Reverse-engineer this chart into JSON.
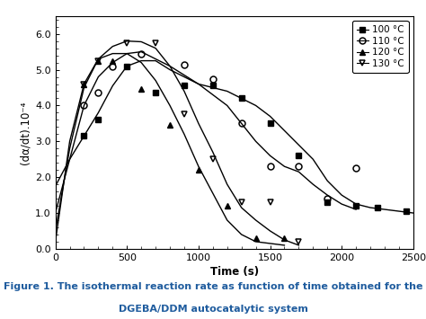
{
  "title_line1": "Figure 1. The isothermal reaction rate as function of time obtained for the",
  "title_line2": "DGEBA/DDM autocatalytic system",
  "xlabel": "Time (s)",
  "ylabel": "(dα/dt).10⁻⁴",
  "xlim": [
    0,
    2500
  ],
  "ylim": [
    0.0,
    6.5
  ],
  "yticks": [
    0.0,
    1.0,
    2.0,
    3.0,
    4.0,
    5.0,
    6.0
  ],
  "ytick_labels": [
    "0.0",
    "1.0",
    "2.0",
    "3.0",
    "4.0",
    "5.0",
    "6.0"
  ],
  "xticks": [
    0,
    500,
    1000,
    1500,
    2000,
    2500
  ],
  "series": {
    "100C": {
      "label": "100 °C",
      "marker": "s",
      "fillstyle": "full",
      "data_x": [
        200,
        300,
        500,
        700,
        900,
        1100,
        1300,
        1500,
        1700,
        1900,
        2100,
        2250,
        2450
      ],
      "data_y": [
        3.15,
        3.6,
        5.1,
        4.35,
        4.55,
        4.55,
        4.2,
        3.5,
        2.6,
        1.3,
        1.2,
        1.15,
        1.05
      ],
      "curve_x": [
        0,
        100,
        200,
        300,
        400,
        500,
        600,
        700,
        800,
        900,
        1000,
        1100,
        1200,
        1300,
        1400,
        1500,
        1600,
        1700,
        1800,
        1900,
        2000,
        2100,
        2200,
        2300,
        2400,
        2500
      ],
      "curve_y": [
        1.75,
        2.5,
        3.15,
        3.8,
        4.55,
        5.1,
        5.25,
        5.25,
        5.0,
        4.8,
        4.6,
        4.5,
        4.4,
        4.2,
        4.0,
        3.7,
        3.3,
        2.9,
        2.5,
        1.9,
        1.5,
        1.25,
        1.15,
        1.1,
        1.05,
        1.0
      ]
    },
    "110C": {
      "label": "110 °C",
      "marker": "o",
      "fillstyle": "none",
      "data_x": [
        200,
        300,
        400,
        600,
        900,
        1100,
        1300,
        1500,
        1700,
        1900,
        2100
      ],
      "data_y": [
        4.0,
        4.35,
        5.1,
        5.45,
        5.15,
        4.75,
        3.5,
        2.3,
        2.3,
        1.4,
        2.25
      ],
      "curve_x": [
        0,
        100,
        200,
        300,
        400,
        500,
        600,
        700,
        800,
        900,
        1000,
        1100,
        1200,
        1300,
        1400,
        1500,
        1600,
        1700,
        1800,
        1900,
        2000,
        2100
      ],
      "curve_y": [
        1.0,
        2.5,
        4.0,
        4.8,
        5.2,
        5.45,
        5.5,
        5.3,
        5.1,
        4.85,
        4.6,
        4.3,
        4.0,
        3.5,
        3.0,
        2.6,
        2.3,
        2.15,
        1.8,
        1.5,
        1.25,
        1.1
      ]
    },
    "120C": {
      "label": "120 °C",
      "marker": "^",
      "fillstyle": "full",
      "data_x": [
        200,
        300,
        400,
        600,
        800,
        1000,
        1200,
        1400,
        1600
      ],
      "data_y": [
        4.6,
        5.25,
        5.25,
        4.45,
        3.45,
        2.2,
        1.2,
        0.3,
        0.3
      ],
      "curve_x": [
        0,
        100,
        200,
        300,
        400,
        500,
        600,
        700,
        800,
        900,
        1000,
        1100,
        1200,
        1300,
        1400,
        1500,
        1600
      ],
      "curve_y": [
        0.5,
        2.8,
        4.5,
        5.3,
        5.45,
        5.45,
        5.2,
        4.7,
        4.0,
        3.2,
        2.3,
        1.55,
        0.8,
        0.4,
        0.2,
        0.15,
        0.1
      ]
    },
    "130C": {
      "label": "130 °C",
      "marker": "v",
      "fillstyle": "none",
      "data_x": [
        200,
        300,
        500,
        700,
        900,
        1100,
        1300,
        1500,
        1700
      ],
      "data_y": [
        4.6,
        5.25,
        5.75,
        5.75,
        3.75,
        2.5,
        1.3,
        1.3,
        0.2
      ],
      "curve_x": [
        0,
        100,
        200,
        300,
        400,
        500,
        600,
        700,
        800,
        900,
        1000,
        1100,
        1200,
        1300,
        1400,
        1500,
        1600,
        1700
      ],
      "curve_y": [
        0.2,
        3.0,
        4.6,
        5.3,
        5.65,
        5.8,
        5.78,
        5.6,
        5.1,
        4.4,
        3.5,
        2.7,
        1.8,
        1.15,
        0.8,
        0.5,
        0.25,
        0.1
      ]
    }
  },
  "background_color": "#ffffff",
  "title_color": "#1F5C9E",
  "title_fontsize": 8.0,
  "axis_fontsize": 8.5,
  "tick_fontsize": 8.0
}
